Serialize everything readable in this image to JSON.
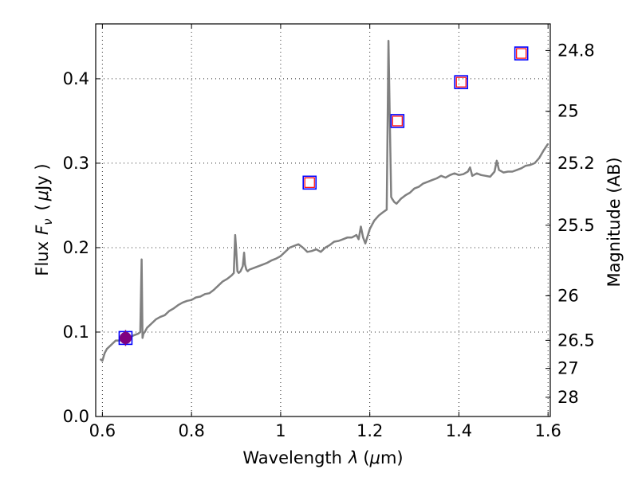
{
  "chart_data": {
    "type": "line",
    "title": "",
    "xlabel": "Wavelength",
    "xlabel_symbol": "λ",
    "xlabel_unit_pre": "(",
    "xlabel_unit_mu": "μ",
    "xlabel_unit_post": "m)",
    "ylabel": "Flux",
    "ylabel_symbol": "F",
    "ylabel_subscript": "ν",
    "ylabel_unit_pre": "(",
    "ylabel_unit_mu": "μ",
    "ylabel_unit_post": "Jy )",
    "y2label": "Magnitude (AB)",
    "xlim": [
      0.585,
      1.605
    ],
    "ylim": [
      0.0,
      0.465
    ],
    "grid": true,
    "x_ticks": [
      {
        "value": 0.6,
        "label": "0.6"
      },
      {
        "value": 0.8,
        "label": "0.8"
      },
      {
        "value": 1.0,
        "label": "1"
      },
      {
        "value": 1.2,
        "label": "1.2"
      },
      {
        "value": 1.4,
        "label": "1.4"
      },
      {
        "value": 1.6,
        "label": "1.6"
      }
    ],
    "y_ticks": [
      {
        "value": 0.0,
        "label": "0.0"
      },
      {
        "value": 0.1,
        "label": "0.1"
      },
      {
        "value": 0.2,
        "label": "0.2"
      },
      {
        "value": 0.3,
        "label": "0.3"
      },
      {
        "value": 0.4,
        "label": "0.4"
      }
    ],
    "y2_ticks": [
      {
        "flux": 0.4335,
        "label": "24.8"
      },
      {
        "flux": 0.3615,
        "label": "25"
      },
      {
        "flux": 0.3,
        "label": "25.2"
      },
      {
        "flux": 0.2265,
        "label": "25.5"
      },
      {
        "flux": 0.143,
        "label": "26"
      },
      {
        "flux": 0.0902,
        "label": "26.5"
      },
      {
        "flux": 0.0569,
        "label": "27"
      },
      {
        "flux": 0.0228,
        "label": "28"
      }
    ],
    "series": [
      {
        "color": "#808080",
        "x": [
          0.595,
          0.6,
          0.605,
          0.61,
          0.62,
          0.63,
          0.64,
          0.65,
          0.66,
          0.67,
          0.68,
          0.685,
          0.688,
          0.69,
          0.692,
          0.695,
          0.7,
          0.71,
          0.72,
          0.73,
          0.74,
          0.75,
          0.76,
          0.77,
          0.78,
          0.79,
          0.8,
          0.81,
          0.82,
          0.83,
          0.84,
          0.85,
          0.86,
          0.87,
          0.88,
          0.89,
          0.895,
          0.898,
          0.9,
          0.903,
          0.906,
          0.91,
          0.915,
          0.918,
          0.92,
          0.923,
          0.926,
          0.93,
          0.94,
          0.95,
          0.96,
          0.97,
          0.98,
          0.99,
          1.0,
          1.01,
          1.02,
          1.03,
          1.04,
          1.05,
          1.06,
          1.07,
          1.08,
          1.09,
          1.1,
          1.11,
          1.12,
          1.13,
          1.14,
          1.15,
          1.16,
          1.17,
          1.175,
          1.18,
          1.185,
          1.19,
          1.2,
          1.21,
          1.22,
          1.23,
          1.238,
          1.242,
          1.245,
          1.248,
          1.25,
          1.255,
          1.26,
          1.27,
          1.28,
          1.29,
          1.3,
          1.31,
          1.32,
          1.33,
          1.34,
          1.35,
          1.36,
          1.37,
          1.38,
          1.39,
          1.4,
          1.41,
          1.42,
          1.425,
          1.43,
          1.44,
          1.45,
          1.46,
          1.47,
          1.48,
          1.485,
          1.49,
          1.5,
          1.51,
          1.52,
          1.53,
          1.54,
          1.55,
          1.56,
          1.57,
          1.58,
          1.59,
          1.6
        ],
        "y": [
          0.068,
          0.066,
          0.075,
          0.08,
          0.085,
          0.09,
          0.09,
          0.093,
          0.093,
          0.096,
          0.098,
          0.1,
          0.186,
          0.093,
          0.098,
          0.1,
          0.105,
          0.11,
          0.115,
          0.118,
          0.12,
          0.125,
          0.128,
          0.132,
          0.135,
          0.137,
          0.138,
          0.141,
          0.142,
          0.145,
          0.146,
          0.15,
          0.155,
          0.16,
          0.163,
          0.167,
          0.17,
          0.215,
          0.2,
          0.172,
          0.17,
          0.172,
          0.178,
          0.194,
          0.18,
          0.174,
          0.172,
          0.174,
          0.176,
          0.178,
          0.18,
          0.182,
          0.185,
          0.187,
          0.19,
          0.195,
          0.2,
          0.202,
          0.204,
          0.2,
          0.195,
          0.196,
          0.198,
          0.195,
          0.2,
          0.203,
          0.207,
          0.208,
          0.21,
          0.212,
          0.212,
          0.215,
          0.21,
          0.225,
          0.212,
          0.205,
          0.222,
          0.232,
          0.238,
          0.242,
          0.245,
          0.445,
          0.35,
          0.26,
          0.258,
          0.254,
          0.252,
          0.258,
          0.262,
          0.265,
          0.27,
          0.272,
          0.276,
          0.278,
          0.28,
          0.282,
          0.285,
          0.283,
          0.286,
          0.288,
          0.286,
          0.287,
          0.29,
          0.295,
          0.285,
          0.288,
          0.286,
          0.285,
          0.284,
          0.29,
          0.303,
          0.292,
          0.289,
          0.29,
          0.29,
          0.292,
          0.294,
          0.297,
          0.298,
          0.3,
          0.306,
          0.315,
          0.323
        ]
      }
    ],
    "markers": [
      {
        "x": 0.652,
        "y": 0.093,
        "shape": "square",
        "edge": "#0000ff",
        "face": "none"
      },
      {
        "x": 1.065,
        "y": 0.277,
        "shape": "square",
        "edge": "#0000ff",
        "face": "none"
      },
      {
        "x": 1.262,
        "y": 0.35,
        "shape": "square",
        "edge": "#0000ff",
        "face": "none"
      },
      {
        "x": 1.405,
        "y": 0.396,
        "shape": "square",
        "edge": "#0000ff",
        "face": "none"
      },
      {
        "x": 1.54,
        "y": 0.43,
        "shape": "square",
        "edge": "#0000ff",
        "face": "none"
      },
      {
        "x": 1.065,
        "y": 0.277,
        "shape": "square",
        "edge": "#ff0000",
        "face": "none",
        "size": "small"
      },
      {
        "x": 1.262,
        "y": 0.35,
        "shape": "square",
        "edge": "#ff0000",
        "face": "none",
        "size": "small"
      },
      {
        "x": 1.405,
        "y": 0.396,
        "shape": "square",
        "edge": "#ff0000",
        "face": "none",
        "size": "small"
      },
      {
        "x": 1.54,
        "y": 0.43,
        "shape": "square",
        "edge": "#ff0000",
        "face": "none",
        "size": "small"
      },
      {
        "x": 0.652,
        "y": 0.093,
        "shape": "circle",
        "edge": "#800080",
        "face": "#800080"
      }
    ]
  }
}
